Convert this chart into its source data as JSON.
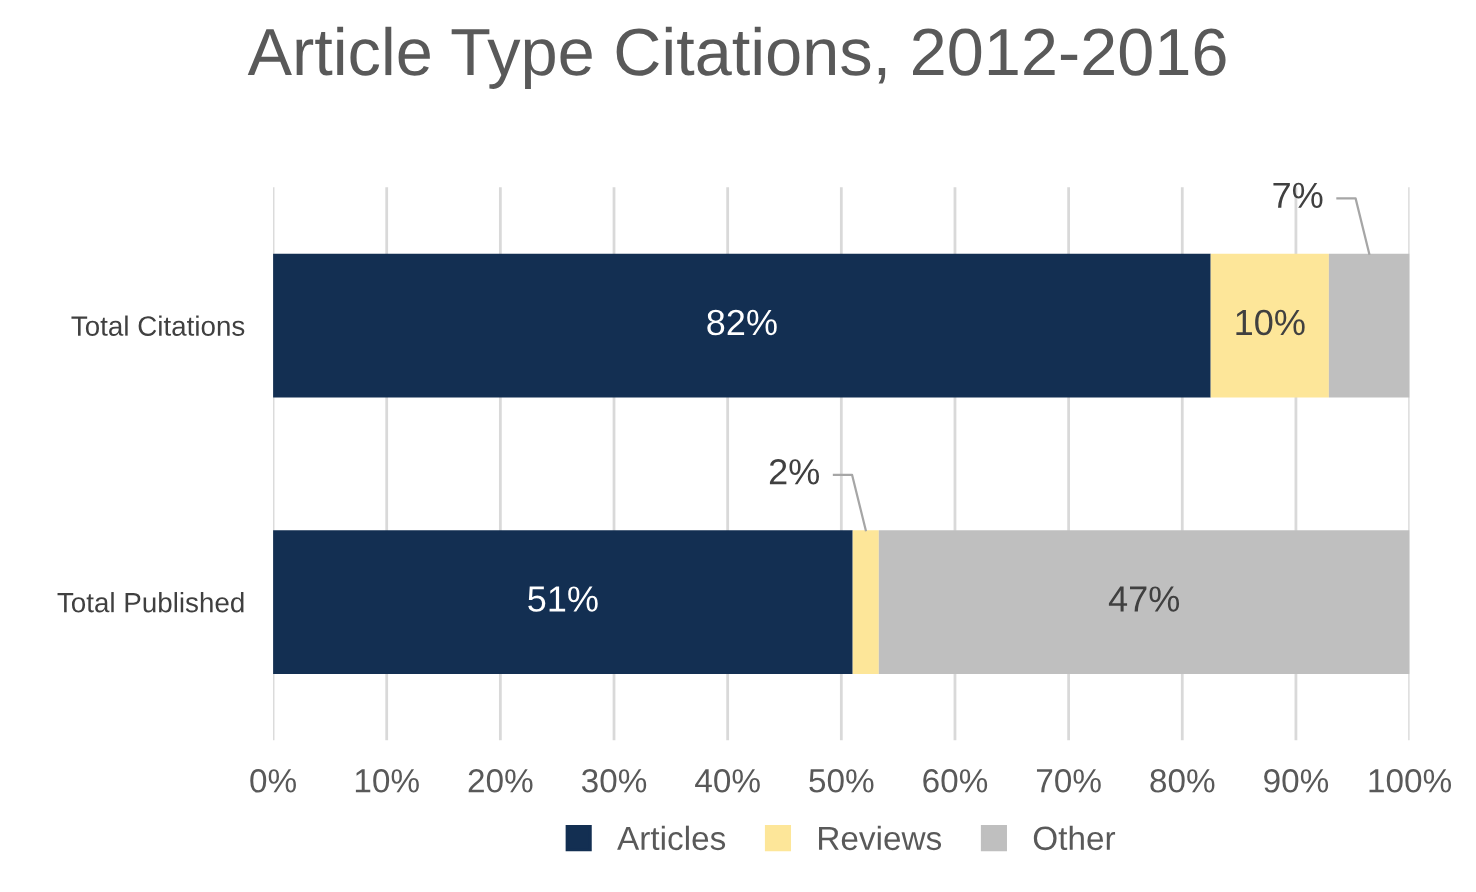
{
  "chart_data": {
    "type": "bar",
    "title": "Article Type Citations, 2012-2016",
    "orientation": "horizontal",
    "stacked": true,
    "categories": [
      "Total Citations",
      "Total Published"
    ],
    "series": [
      {
        "name": "Articles",
        "color": "#132f52",
        "values": [
          82.5,
          51.0
        ],
        "value_labels": [
          "82%",
          "51%"
        ]
      },
      {
        "name": "Reviews",
        "color": "#fde699",
        "values": [
          10.4,
          2.3
        ],
        "value_labels": [
          "10%",
          "2%"
        ]
      },
      {
        "name": "Other",
        "color": "#bfbfbf",
        "values": [
          7.1,
          46.7
        ],
        "value_labels": [
          "7%",
          "47%"
        ]
      }
    ],
    "xlim": [
      0,
      100
    ],
    "xticks": [
      {
        "value": 0,
        "label": "0%"
      },
      {
        "value": 10,
        "label": "10%"
      },
      {
        "value": 20,
        "label": "20%"
      },
      {
        "value": 30,
        "label": "30%"
      },
      {
        "value": 40,
        "label": "40%"
      },
      {
        "value": 50,
        "label": "50%"
      },
      {
        "value": 60,
        "label": "60%"
      },
      {
        "value": 70,
        "label": "70%"
      },
      {
        "value": 80,
        "label": "80%"
      },
      {
        "value": 90,
        "label": "90%"
      },
      {
        "value": 100,
        "label": "100%"
      }
    ],
    "grid": "x",
    "legend": "bottom"
  }
}
